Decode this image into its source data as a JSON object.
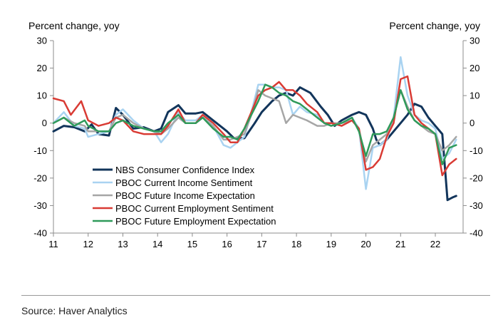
{
  "chart_data": {
    "type": "line",
    "ylabel_left": "Percent change, yoy",
    "ylabel_right": "Percent change, yoy",
    "ylim": [
      -40,
      30
    ],
    "yticks": [
      30,
      20,
      10,
      0,
      -10,
      -20,
      -30,
      -40
    ],
    "xlim": [
      2011.0,
      2022.8
    ],
    "xticks": [
      11,
      12,
      13,
      14,
      15,
      16,
      17,
      18,
      19,
      20,
      21,
      22
    ],
    "grid": false,
    "legend_position": "lower-left",
    "series": [
      {
        "name": "NBS Consumer Confidence Index",
        "color": "#12355b",
        "width": 3,
        "points": [
          [
            2011.0,
            -3
          ],
          [
            2011.3,
            -1
          ],
          [
            2011.6,
            -1.5
          ],
          [
            2011.9,
            -3
          ],
          [
            2012.1,
            -0.5
          ],
          [
            2012.3,
            -4
          ],
          [
            2012.6,
            -4.5
          ],
          [
            2012.8,
            5.5
          ],
          [
            2013.0,
            3
          ],
          [
            2013.3,
            -2
          ],
          [
            2013.6,
            -1.5
          ],
          [
            2013.9,
            -3
          ],
          [
            2014.1,
            -2
          ],
          [
            2014.3,
            4
          ],
          [
            2014.6,
            6.5
          ],
          [
            2014.8,
            3.5
          ],
          [
            2015.1,
            3.5
          ],
          [
            2015.3,
            4
          ],
          [
            2015.6,
            1
          ],
          [
            2015.9,
            -2
          ],
          [
            2016.0,
            -3
          ],
          [
            2016.2,
            -5.5
          ],
          [
            2016.5,
            -5.5
          ],
          [
            2016.8,
            0
          ],
          [
            2017.0,
            4
          ],
          [
            2017.3,
            8
          ],
          [
            2017.5,
            10
          ],
          [
            2017.7,
            11
          ],
          [
            2017.9,
            10
          ],
          [
            2018.1,
            13
          ],
          [
            2018.4,
            11
          ],
          [
            2018.7,
            6
          ],
          [
            2018.9,
            3
          ],
          [
            2019.1,
            -1
          ],
          [
            2019.3,
            1
          ],
          [
            2019.6,
            3
          ],
          [
            2019.8,
            4
          ],
          [
            2020.0,
            3
          ],
          [
            2020.2,
            -2
          ],
          [
            2020.3,
            -6
          ],
          [
            2020.4,
            -8
          ],
          [
            2020.6,
            -6
          ],
          [
            2020.8,
            -3
          ],
          [
            2021.0,
            0
          ],
          [
            2021.2,
            3
          ],
          [
            2021.4,
            7
          ],
          [
            2021.6,
            6
          ],
          [
            2021.8,
            2
          ],
          [
            2022.0,
            -1
          ],
          [
            2022.2,
            -4
          ],
          [
            2022.35,
            -28
          ],
          [
            2022.5,
            -27
          ],
          [
            2022.6,
            -26.5
          ]
        ]
      },
      {
        "name": "PBOC Current Income Sentiment",
        "color": "#a9d3f1",
        "width": 2.5,
        "points": [
          [
            2011.0,
            0
          ],
          [
            2011.3,
            4
          ],
          [
            2011.6,
            -1
          ],
          [
            2011.9,
            -2
          ],
          [
            2012.0,
            -5
          ],
          [
            2012.3,
            -4
          ],
          [
            2012.6,
            -3
          ],
          [
            2012.8,
            3
          ],
          [
            2013.0,
            5
          ],
          [
            2013.3,
            1
          ],
          [
            2013.6,
            -2
          ],
          [
            2013.9,
            -3
          ],
          [
            2014.1,
            -7
          ],
          [
            2014.3,
            -4
          ],
          [
            2014.6,
            4
          ],
          [
            2014.8,
            1
          ],
          [
            2015.1,
            1
          ],
          [
            2015.3,
            3
          ],
          [
            2015.6,
            -1
          ],
          [
            2015.9,
            -8
          ],
          [
            2016.1,
            -9
          ],
          [
            2016.3,
            -7
          ],
          [
            2016.5,
            -5
          ],
          [
            2016.7,
            4
          ],
          [
            2016.9,
            14
          ],
          [
            2017.1,
            14
          ],
          [
            2017.3,
            13
          ],
          [
            2017.5,
            13
          ],
          [
            2017.7,
            12
          ],
          [
            2017.9,
            3
          ],
          [
            2018.1,
            6
          ],
          [
            2018.3,
            4
          ],
          [
            2018.6,
            3
          ],
          [
            2018.8,
            0
          ],
          [
            2019.0,
            -1
          ],
          [
            2019.3,
            0
          ],
          [
            2019.6,
            2
          ],
          [
            2019.8,
            -2
          ],
          [
            2020.0,
            -24
          ],
          [
            2020.2,
            -9
          ],
          [
            2020.4,
            -8
          ],
          [
            2020.6,
            -6
          ],
          [
            2020.8,
            2
          ],
          [
            2021.0,
            24
          ],
          [
            2021.2,
            10
          ],
          [
            2021.4,
            3
          ],
          [
            2021.6,
            1
          ],
          [
            2021.8,
            0
          ],
          [
            2022.0,
            -2
          ],
          [
            2022.2,
            -13
          ],
          [
            2022.4,
            -11
          ],
          [
            2022.6,
            -6
          ]
        ]
      },
      {
        "name": "PBOC Future Income Expectation",
        "color": "#a6a6a6",
        "width": 2.5,
        "points": [
          [
            2011.0,
            0
          ],
          [
            2011.3,
            2
          ],
          [
            2011.6,
            0
          ],
          [
            2011.9,
            -1
          ],
          [
            2012.0,
            -3
          ],
          [
            2012.3,
            -3
          ],
          [
            2012.6,
            -3
          ],
          [
            2012.8,
            2
          ],
          [
            2013.0,
            3
          ],
          [
            2013.3,
            0
          ],
          [
            2013.6,
            -2
          ],
          [
            2013.9,
            -3
          ],
          [
            2014.1,
            -4
          ],
          [
            2014.3,
            -2
          ],
          [
            2014.6,
            2
          ],
          [
            2014.8,
            0
          ],
          [
            2015.1,
            0
          ],
          [
            2015.3,
            2
          ],
          [
            2015.6,
            -1
          ],
          [
            2015.9,
            -6
          ],
          [
            2016.1,
            -6
          ],
          [
            2016.3,
            -5
          ],
          [
            2016.5,
            -4
          ],
          [
            2016.7,
            3
          ],
          [
            2016.9,
            12
          ],
          [
            2017.1,
            10
          ],
          [
            2017.3,
            9
          ],
          [
            2017.5,
            8
          ],
          [
            2017.7,
            0
          ],
          [
            2017.9,
            3
          ],
          [
            2018.1,
            2
          ],
          [
            2018.3,
            1
          ],
          [
            2018.6,
            -1
          ],
          [
            2018.8,
            -1
          ],
          [
            2019.0,
            0
          ],
          [
            2019.3,
            0
          ],
          [
            2019.6,
            1
          ],
          [
            2019.8,
            -2
          ],
          [
            2020.0,
            -14
          ],
          [
            2020.2,
            -8
          ],
          [
            2020.4,
            -6
          ],
          [
            2020.6,
            -4
          ],
          [
            2020.8,
            2
          ],
          [
            2021.0,
            12
          ],
          [
            2021.2,
            6
          ],
          [
            2021.4,
            1
          ],
          [
            2021.6,
            -1
          ],
          [
            2021.8,
            -3
          ],
          [
            2022.0,
            -4
          ],
          [
            2022.2,
            -10
          ],
          [
            2022.4,
            -8
          ],
          [
            2022.6,
            -5
          ]
        ]
      },
      {
        "name": "PBOC Current Employment Sentiment",
        "color": "#d93b34",
        "width": 2.5,
        "points": [
          [
            2011.0,
            9
          ],
          [
            2011.3,
            8
          ],
          [
            2011.5,
            3
          ],
          [
            2011.8,
            8
          ],
          [
            2012.0,
            1
          ],
          [
            2012.3,
            -1
          ],
          [
            2012.6,
            0
          ],
          [
            2012.8,
            2
          ],
          [
            2013.0,
            1
          ],
          [
            2013.3,
            -3
          ],
          [
            2013.6,
            -4
          ],
          [
            2013.9,
            -4
          ],
          [
            2014.1,
            -4
          ],
          [
            2014.3,
            -1
          ],
          [
            2014.6,
            5
          ],
          [
            2014.8,
            0
          ],
          [
            2015.1,
            0
          ],
          [
            2015.3,
            3
          ],
          [
            2015.6,
            0
          ],
          [
            2015.9,
            -4
          ],
          [
            2016.1,
            -7
          ],
          [
            2016.3,
            -7
          ],
          [
            2016.5,
            -2
          ],
          [
            2016.7,
            4
          ],
          [
            2016.9,
            10
          ],
          [
            2017.1,
            12
          ],
          [
            2017.3,
            13
          ],
          [
            2017.5,
            15
          ],
          [
            2017.7,
            12
          ],
          [
            2017.9,
            12
          ],
          [
            2018.1,
            10
          ],
          [
            2018.3,
            7
          ],
          [
            2018.6,
            4
          ],
          [
            2018.8,
            0
          ],
          [
            2019.0,
            0
          ],
          [
            2019.3,
            -1
          ],
          [
            2019.6,
            1
          ],
          [
            2019.8,
            -2
          ],
          [
            2020.0,
            -17
          ],
          [
            2020.2,
            -16
          ],
          [
            2020.4,
            -13
          ],
          [
            2020.6,
            -5
          ],
          [
            2020.8,
            0
          ],
          [
            2021.0,
            16
          ],
          [
            2021.2,
            17
          ],
          [
            2021.4,
            3
          ],
          [
            2021.6,
            0
          ],
          [
            2021.8,
            -2
          ],
          [
            2022.0,
            -4
          ],
          [
            2022.2,
            -19
          ],
          [
            2022.4,
            -15
          ],
          [
            2022.6,
            -13
          ]
        ]
      },
      {
        "name": "PBOC Future Employment Expectation",
        "color": "#2f9a5a",
        "width": 2.5,
        "points": [
          [
            2011.0,
            0
          ],
          [
            2011.3,
            2
          ],
          [
            2011.6,
            -1
          ],
          [
            2011.9,
            1
          ],
          [
            2012.0,
            -1
          ],
          [
            2012.3,
            -3
          ],
          [
            2012.6,
            -3
          ],
          [
            2012.8,
            0
          ],
          [
            2013.0,
            1
          ],
          [
            2013.3,
            -1
          ],
          [
            2013.6,
            -2
          ],
          [
            2013.9,
            -3
          ],
          [
            2014.1,
            -3
          ],
          [
            2014.3,
            0
          ],
          [
            2014.6,
            3
          ],
          [
            2014.8,
            0
          ],
          [
            2015.1,
            0
          ],
          [
            2015.3,
            2
          ],
          [
            2015.6,
            -2
          ],
          [
            2015.9,
            -5
          ],
          [
            2016.1,
            -5
          ],
          [
            2016.3,
            -6
          ],
          [
            2016.5,
            -2
          ],
          [
            2016.7,
            3
          ],
          [
            2016.9,
            8
          ],
          [
            2017.1,
            14
          ],
          [
            2017.3,
            13
          ],
          [
            2017.5,
            11
          ],
          [
            2017.7,
            10
          ],
          [
            2017.9,
            8
          ],
          [
            2018.1,
            7
          ],
          [
            2018.3,
            5
          ],
          [
            2018.6,
            2
          ],
          [
            2018.8,
            0
          ],
          [
            2019.0,
            -1
          ],
          [
            2019.3,
            0
          ],
          [
            2019.6,
            2
          ],
          [
            2019.8,
            -3
          ],
          [
            2020.0,
            -12
          ],
          [
            2020.2,
            -4
          ],
          [
            2020.4,
            -4
          ],
          [
            2020.6,
            -3
          ],
          [
            2020.8,
            2
          ],
          [
            2021.0,
            12
          ],
          [
            2021.2,
            5
          ],
          [
            2021.4,
            1
          ],
          [
            2021.6,
            -1
          ],
          [
            2021.8,
            -2
          ],
          [
            2022.0,
            -4
          ],
          [
            2022.2,
            -15
          ],
          [
            2022.4,
            -9
          ],
          [
            2022.6,
            -8
          ]
        ]
      }
    ]
  },
  "source": "Source: Haver Analytics"
}
